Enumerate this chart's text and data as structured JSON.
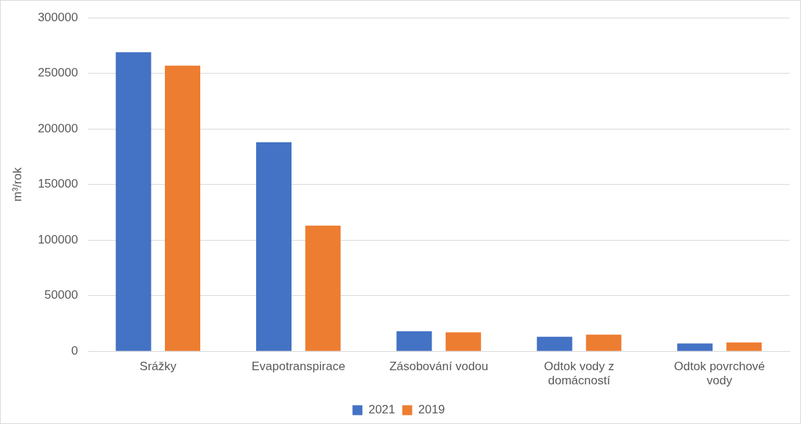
{
  "chart_data": {
    "type": "bar",
    "ylabel": "m³/rok",
    "categories": [
      "Srážky",
      "Evapotranspirace",
      "Zásobování vodou",
      "Odtok vody z domácností",
      "Odtok povrchové vody"
    ],
    "series": [
      {
        "name": "2021",
        "color": "#4472c4",
        "values": [
          269000,
          188000,
          18000,
          13000,
          7000
        ]
      },
      {
        "name": "2019",
        "color": "#ed7d31",
        "values": [
          257000,
          113000,
          17000,
          15000,
          8000
        ]
      }
    ],
    "ylim": [
      0,
      300000
    ],
    "yticks": [
      0,
      50000,
      100000,
      150000,
      200000,
      250000,
      300000
    ],
    "grid": "y",
    "legend": "bottom"
  }
}
